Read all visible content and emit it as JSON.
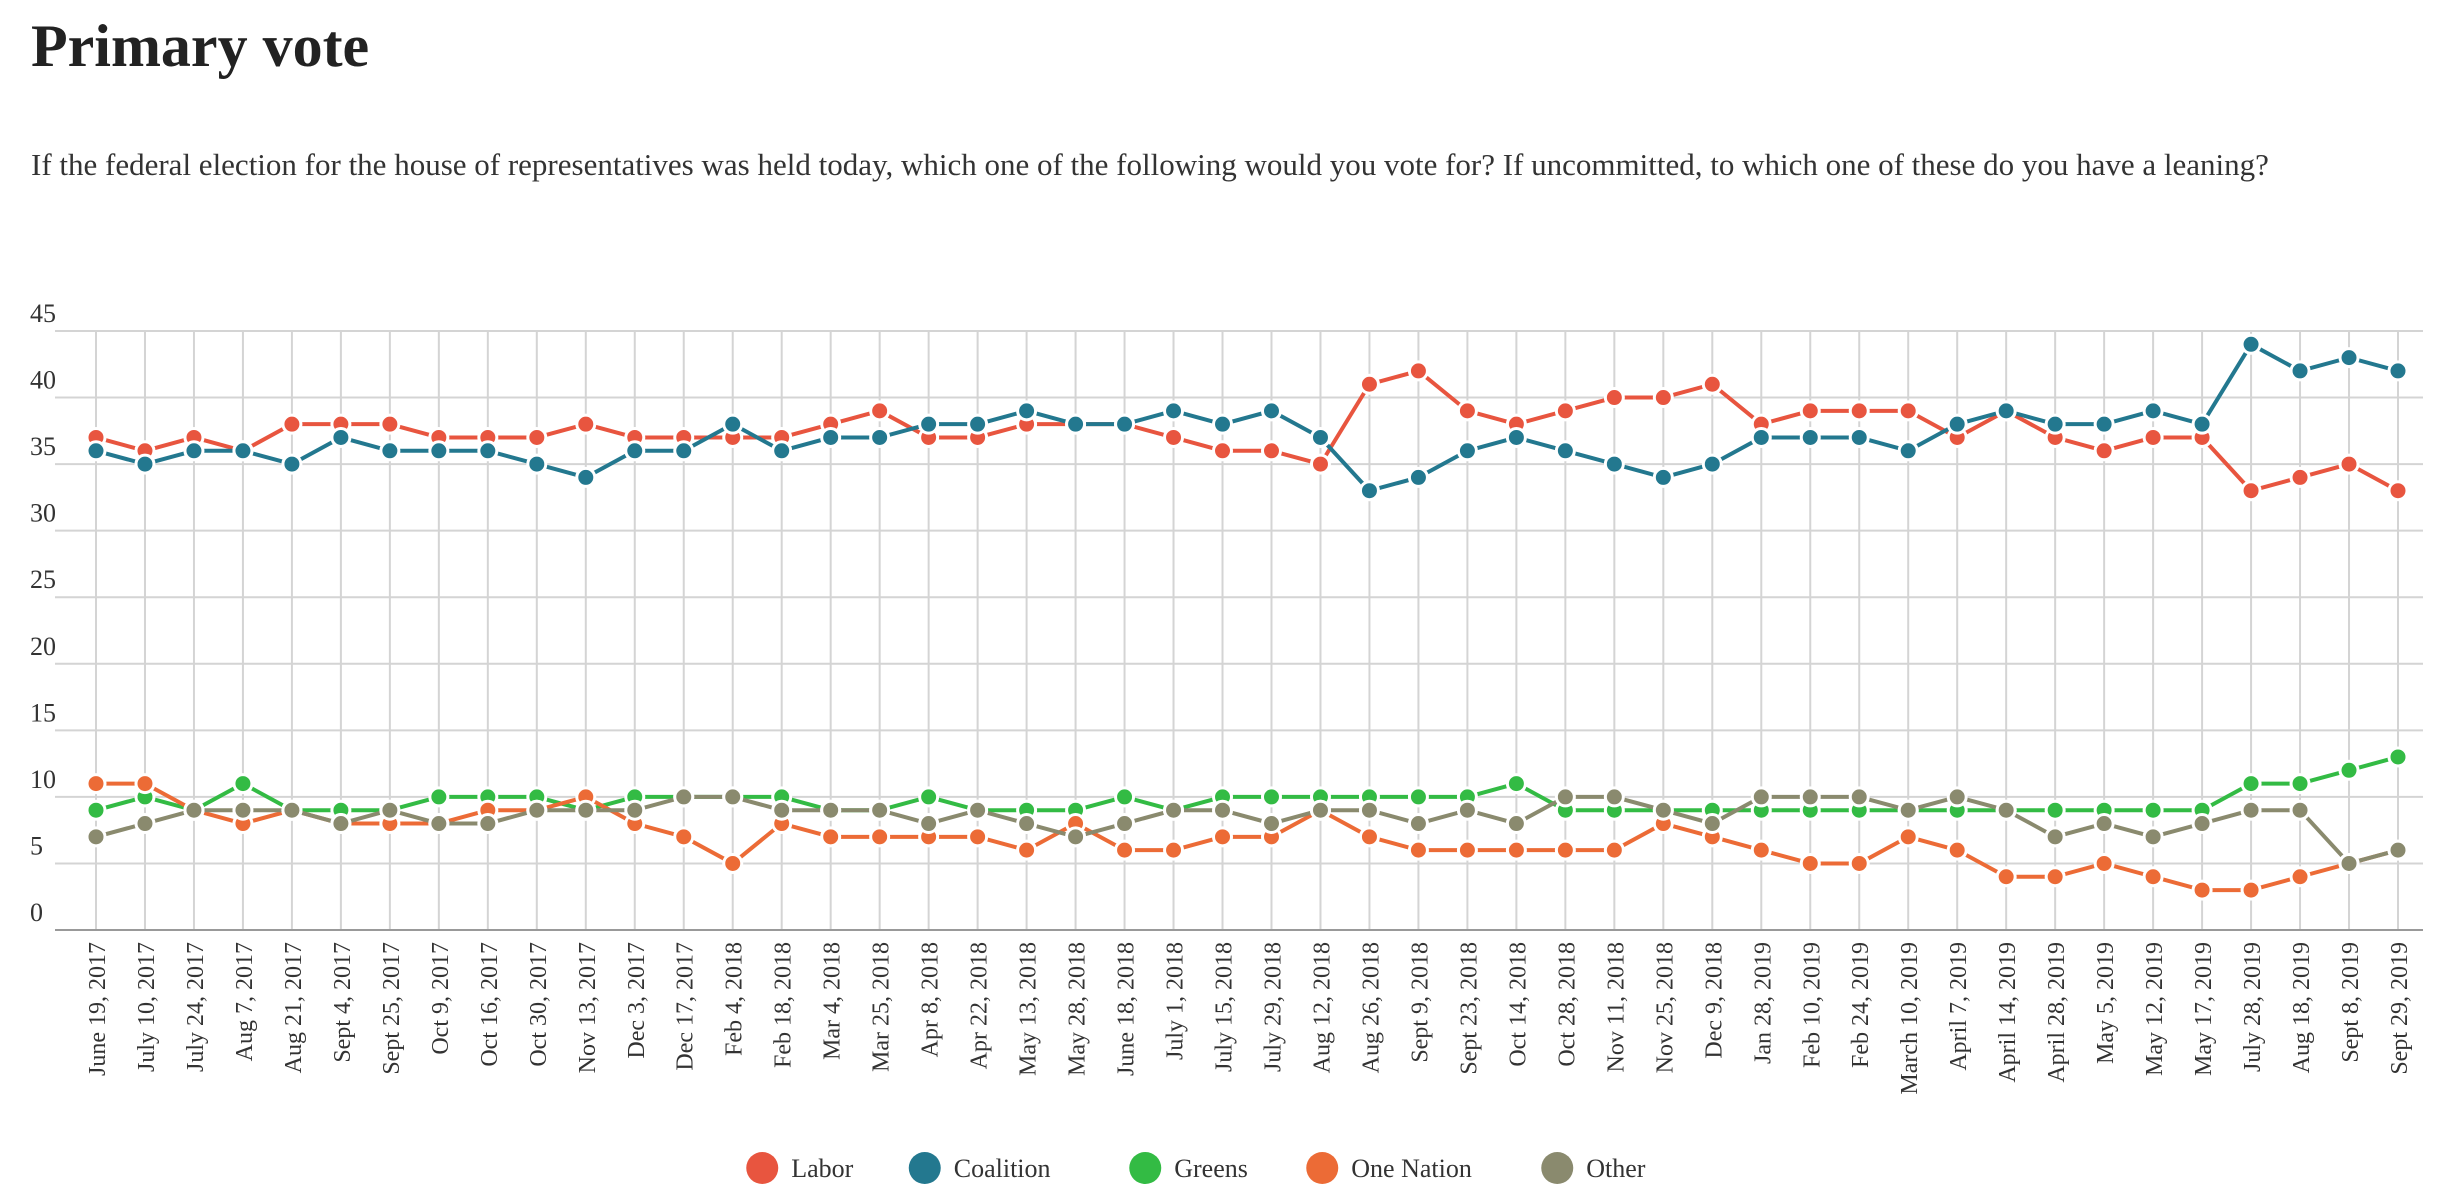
{
  "chart_data": {
    "type": "line",
    "title": "Primary vote",
    "subtitle": "If the federal election for the house of representatives was held today, which one of the following would you vote for? If uncommitted, to which one of these do you have a leaning?",
    "categories": [
      "June 19, 2017",
      "July 10, 2017",
      "July 24, 2017",
      "Aug 7, 2017",
      "Aug 21, 2017",
      "Sept 4, 2017",
      "Sept 25, 2017",
      "Oct 9, 2017",
      "Oct 16, 2017",
      "Oct 30, 2017",
      "Nov 13, 2017",
      "Dec 3, 2017",
      "Dec 17, 2017",
      "Feb 4, 2018",
      "Feb 18, 2018",
      "Mar 4, 2018",
      "Mar 25, 2018",
      "Apr 8, 2018",
      "Apr 22, 2018",
      "May 13, 2018",
      "May 28, 2018",
      "June 18, 2018",
      "July 1, 2018",
      "July 15, 2018",
      "July 29, 2018",
      "Aug 12, 2018",
      "Aug 26, 2018",
      "Sept 9, 2018",
      "Sept 23, 2018",
      "Oct 14, 2018",
      "Oct 28, 2018",
      "Nov 11, 2018",
      "Nov 25, 2018",
      "Dec 9, 2018",
      "Jan 28, 2019",
      "Feb 10, 2019",
      "Feb 24, 2019",
      "March 10, 2019",
      "April 7, 2019",
      "April 14, 2019",
      "April 28, 2019",
      "May 5, 2019",
      "May 12, 2019",
      "May 17, 2019",
      "July 28, 2019",
      "Aug 18, 2019",
      "Sept 8, 2019",
      "Sept 29, 2019"
    ],
    "series": [
      {
        "name": "Labor",
        "color": "#e8553f",
        "values": [
          37,
          36,
          37,
          36,
          38,
          38,
          38,
          37,
          37,
          37,
          38,
          37,
          37,
          37,
          37,
          38,
          39,
          37,
          37,
          38,
          38,
          38,
          37,
          36,
          36,
          35,
          41,
          42,
          39,
          38,
          39,
          40,
          40,
          41,
          38,
          39,
          39,
          39,
          37,
          39,
          37,
          36,
          37,
          37,
          33,
          34,
          35,
          33
        ]
      },
      {
        "name": "Coalition",
        "color": "#23788f",
        "values": [
          36,
          35,
          36,
          36,
          35,
          37,
          36,
          36,
          36,
          35,
          34,
          36,
          36,
          38,
          36,
          37,
          37,
          38,
          38,
          39,
          38,
          38,
          39,
          38,
          39,
          37,
          33,
          34,
          36,
          37,
          36,
          35,
          34,
          35,
          37,
          37,
          37,
          36,
          38,
          39,
          38,
          38,
          39,
          38,
          44,
          42,
          43,
          42
        ]
      },
      {
        "name": "Greens",
        "color": "#33bb44",
        "values": [
          9,
          10,
          9,
          11,
          9,
          9,
          9,
          10,
          10,
          10,
          9,
          10,
          10,
          10,
          10,
          9,
          9,
          10,
          9,
          9,
          9,
          10,
          9,
          10,
          10,
          10,
          10,
          10,
          10,
          11,
          9,
          9,
          9,
          9,
          9,
          9,
          9,
          9,
          9,
          9,
          9,
          9,
          9,
          9,
          11,
          11,
          12,
          13
        ]
      },
      {
        "name": "One Nation",
        "color": "#ec6b36",
        "values": [
          11,
          11,
          9,
          8,
          9,
          8,
          8,
          8,
          9,
          9,
          10,
          8,
          7,
          5,
          8,
          7,
          7,
          7,
          7,
          6,
          8,
          6,
          6,
          7,
          7,
          9,
          7,
          6,
          6,
          6,
          6,
          6,
          8,
          7,
          6,
          5,
          5,
          7,
          6,
          4,
          4,
          5,
          4,
          3,
          3,
          4,
          5,
          6
        ]
      },
      {
        "name": "Other",
        "color": "#8a8a6e",
        "values": [
          7,
          8,
          9,
          9,
          9,
          8,
          9,
          8,
          8,
          9,
          9,
          9,
          10,
          10,
          9,
          9,
          9,
          8,
          9,
          8,
          7,
          8,
          9,
          9,
          8,
          9,
          9,
          8,
          9,
          8,
          10,
          10,
          9,
          8,
          10,
          10,
          10,
          9,
          10,
          9,
          7,
          8,
          7,
          8,
          9,
          9,
          5,
          6
        ]
      }
    ],
    "ylim": [
      0,
      45
    ],
    "yticks": [
      0,
      5,
      10,
      15,
      20,
      25,
      30,
      35,
      40,
      45
    ],
    "grid": true
  }
}
